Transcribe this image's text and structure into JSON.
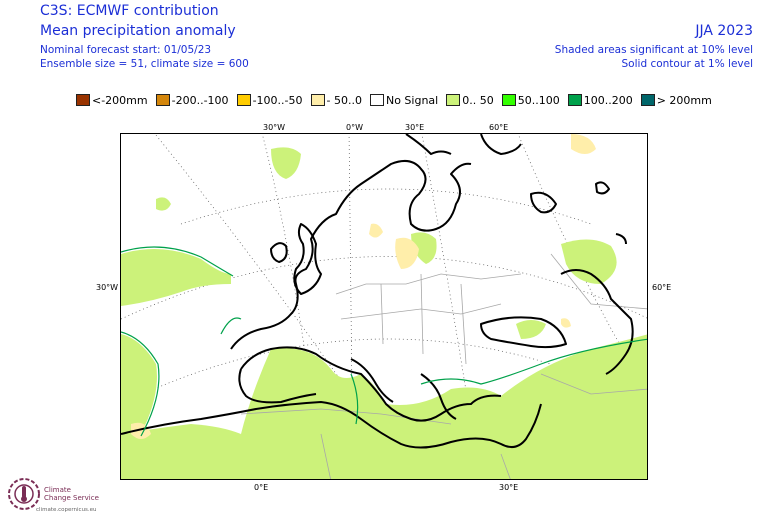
{
  "header": {
    "title": "C3S: ECMWF contribution",
    "subtitle": "Mean precipitation anomaly",
    "forecast_start": "Nominal forecast start: 01/05/23",
    "ensemble": "Ensemble size = 51, climate size = 600",
    "season": "JJA 2023",
    "shaded_note": "Shaded areas significant at 10% level",
    "contour_note": "Solid contour at 1% level"
  },
  "legend": [
    {
      "label": "<-200mm",
      "color": "#993300"
    },
    {
      "label": "-200..-100",
      "color": "#d4860b"
    },
    {
      "label": "-100..-50",
      "color": "#ffcc00"
    },
    {
      "label": "- 50..0",
      "color": "#ffeeaa"
    },
    {
      "label": "No Signal",
      "color": "#ffffff"
    },
    {
      "label": "0.. 50",
      "color": "#ccf27a"
    },
    {
      "label": "50..100",
      "color": "#33ff00"
    },
    {
      "label": "100..200",
      "color": "#00a14b"
    },
    {
      "label": "> 200mm",
      "color": "#00666a"
    }
  ],
  "map": {
    "top_labels": [
      "30°W",
      "0°W",
      "30°E",
      "60°E"
    ],
    "left_label": "30°W",
    "right_label": "60°E",
    "bottom_labels": [
      "0°E",
      "30°E"
    ]
  },
  "branding": {
    "name_line1": "Climate",
    "name_line2": "Change Service",
    "url": "climate.copernicus.eu"
  }
}
